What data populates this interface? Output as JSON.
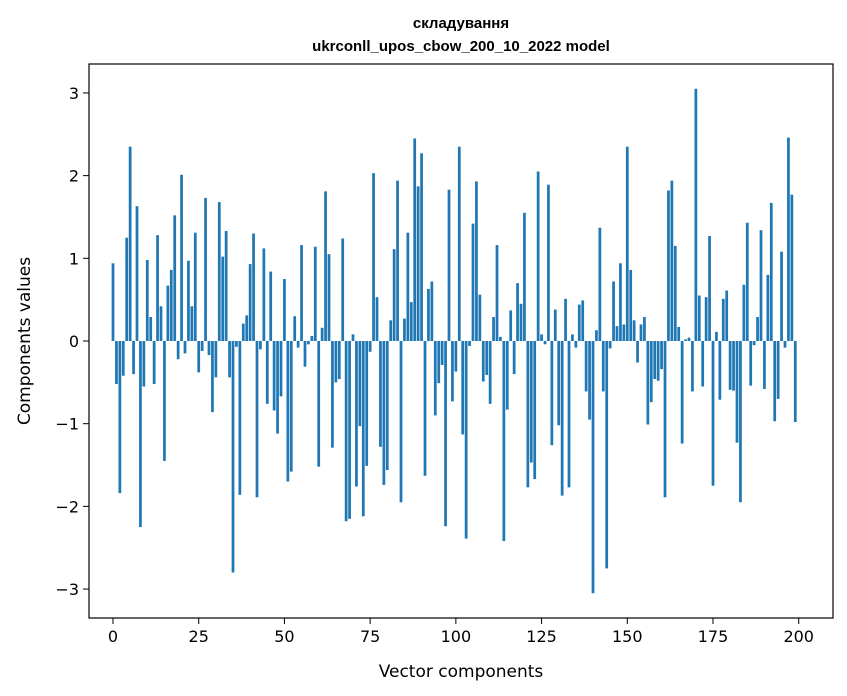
{
  "chart_data": {
    "type": "bar",
    "title_line1": "складування",
    "title_line2": "ukrconll_upos_cbow_200_10_2022 model",
    "xlabel": "Vector components",
    "ylabel": "Components values",
    "xlim": [
      -7,
      210
    ],
    "ylim": [
      -3.35,
      3.35
    ],
    "xticks": [
      0,
      25,
      50,
      75,
      100,
      125,
      150,
      175,
      200
    ],
    "yticks": [
      3,
      2,
      1,
      0,
      -1,
      -2,
      -3
    ],
    "ytick_labels": [
      "3",
      "2",
      "1",
      "0",
      "−1",
      "−2",
      "−3"
    ],
    "bar_color": "#1f77b4",
    "grid": false,
    "x": [
      0,
      1,
      2,
      3,
      4,
      5,
      6,
      7,
      8,
      9,
      10,
      11,
      12,
      13,
      14,
      15,
      16,
      17,
      18,
      19,
      20,
      21,
      22,
      23,
      24,
      25,
      26,
      27,
      28,
      29,
      30,
      31,
      32,
      33,
      34,
      35,
      36,
      37,
      38,
      39,
      40,
      41,
      42,
      43,
      44,
      45,
      46,
      47,
      48,
      49,
      50,
      51,
      52,
      53,
      54,
      55,
      56,
      57,
      58,
      59,
      60,
      61,
      62,
      63,
      64,
      65,
      66,
      67,
      68,
      69,
      70,
      71,
      72,
      73,
      74,
      75,
      76,
      77,
      78,
      79,
      80,
      81,
      82,
      83,
      84,
      85,
      86,
      87,
      88,
      89,
      90,
      91,
      92,
      93,
      94,
      95,
      96,
      97,
      98,
      99,
      100,
      101,
      102,
      103,
      104,
      105,
      106,
      107,
      108,
      109,
      110,
      111,
      112,
      113,
      114,
      115,
      116,
      117,
      118,
      119,
      120,
      121,
      122,
      123,
      124,
      125,
      126,
      127,
      128,
      129,
      130,
      131,
      132,
      133,
      134,
      135,
      136,
      137,
      138,
      139,
      140,
      141,
      142,
      143,
      144,
      145,
      146,
      147,
      148,
      149,
      150,
      151,
      152,
      153,
      154,
      155,
      156,
      157,
      158,
      159,
      160,
      161,
      162,
      163,
      164,
      165,
      166,
      167,
      168,
      169,
      170,
      171,
      172,
      173,
      174,
      175,
      176,
      177,
      178,
      179,
      180,
      181,
      182,
      183,
      184,
      185,
      186,
      187,
      188,
      189,
      190,
      191,
      192,
      193,
      194,
      195,
      196,
      197,
      198,
      199
    ],
    "values": [
      0.94,
      -0.52,
      -1.84,
      -0.42,
      1.25,
      2.35,
      -0.4,
      1.63,
      -2.25,
      -0.55,
      0.98,
      0.29,
      -0.52,
      1.28,
      0.42,
      -1.45,
      0.67,
      0.86,
      1.52,
      -0.22,
      2.01,
      -0.15,
      0.97,
      0.42,
      1.31,
      -0.38,
      -0.12,
      1.73,
      -0.17,
      -0.86,
      -0.44,
      1.68,
      1.02,
      1.33,
      -0.44,
      -2.8,
      -0.07,
      -1.86,
      0.21,
      0.31,
      0.93,
      1.3,
      -1.89,
      -0.1,
      1.12,
      -0.76,
      0.84,
      -0.84,
      -1.12,
      -0.67,
      0.75,
      -1.7,
      -1.58,
      0.3,
      -0.08,
      1.16,
      -0.31,
      -0.04,
      0.06,
      1.14,
      -1.52,
      0.16,
      1.81,
      1.05,
      -1.29,
      -0.5,
      -0.46,
      1.24,
      -2.18,
      -2.15,
      0.08,
      -1.76,
      -1.03,
      -2.12,
      -1.51,
      -0.13,
      2.03,
      0.53,
      -1.28,
      -1.74,
      -1.56,
      0.25,
      1.11,
      1.94,
      -1.95,
      0.27,
      1.31,
      0.47,
      2.45,
      1.87,
      2.27,
      -1.63,
      0.63,
      0.72,
      -0.9,
      -0.51,
      -0.29,
      -2.24,
      1.83,
      -0.73,
      -0.37,
      2.35,
      -1.13,
      -2.39,
      -0.06,
      1.42,
      1.93,
      0.56,
      -0.49,
      -0.41,
      -0.76,
      0.29,
      1.16,
      0.05,
      -2.42,
      -0.83,
      0.37,
      -0.4,
      0.7,
      0.45,
      1.55,
      -1.77,
      -1.47,
      -1.67,
      2.05,
      0.08,
      -0.04,
      1.89,
      -1.26,
      0.38,
      -1.02,
      -1.87,
      0.51,
      -1.77,
      0.08,
      -0.08,
      0.44,
      0.49,
      -0.61,
      -0.95,
      -3.05,
      0.13,
      1.37,
      -0.61,
      -2.75,
      -0.09,
      0.72,
      0.18,
      0.94,
      0.2,
      2.35,
      0.86,
      0.25,
      -0.26,
      0.2,
      0.29,
      -1.01,
      -0.74,
      -0.46,
      -0.48,
      -0.34,
      -1.89,
      1.82,
      1.94,
      1.15,
      0.17,
      -1.24,
      0.02,
      0.04,
      -0.61,
      3.05,
      0.55,
      -0.55,
      0.53,
      1.27,
      -1.75,
      0.11,
      -0.71,
      0.51,
      0.61,
      -0.59,
      -0.6,
      -1.23,
      -1.95,
      0.68,
      1.43,
      -0.54,
      -0.05,
      0.29,
      1.34,
      -0.58,
      0.8,
      1.67,
      -0.97,
      -0.7,
      1.08,
      -0.08,
      2.46,
      1.77,
      -0.98
    ]
  }
}
